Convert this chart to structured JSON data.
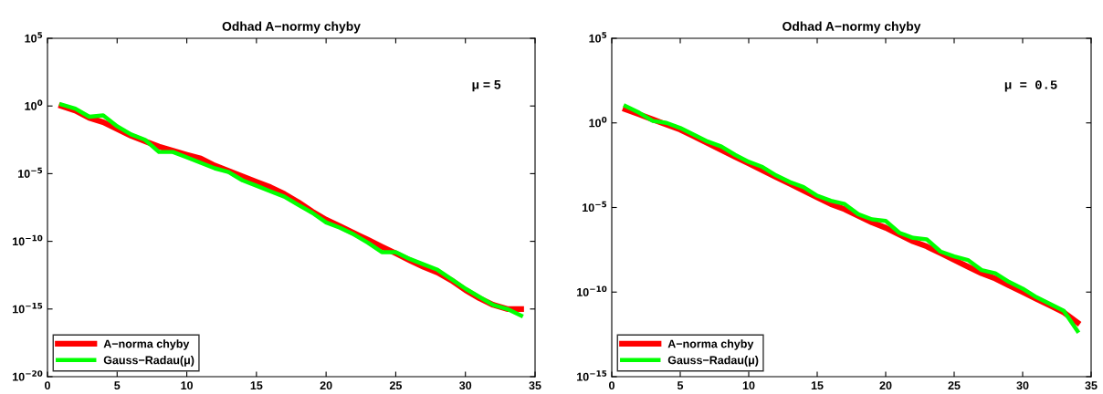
{
  "chart_data": [
    {
      "type": "line",
      "title": "Odhad A−normy chyby",
      "annotations": [
        "μ = 5"
      ],
      "legend": "bottom left",
      "grid": false,
      "log": "y",
      "xlim": [
        0,
        35
      ],
      "xticks": [
        0,
        5,
        10,
        15,
        20,
        25,
        30,
        35
      ],
      "ylim": [
        1e-20,
        100000.0
      ],
      "yticks": [
        {
          "value": 1e-20,
          "label": "10$^{−20}$"
        },
        {
          "value": 1e-15,
          "label": "10$^{−15}$"
        },
        {
          "value": 1e-10,
          "label": "10$^{−10}$"
        },
        {
          "value": 1e-05,
          "label": "10$^{−5}$"
        },
        {
          "value": 1,
          "label": "10$^{0}$"
        },
        {
          "value": 100000.0,
          "label": "10$^{5}$"
        }
      ],
      "x": [
        1,
        2,
        3,
        4,
        5,
        6,
        7,
        8,
        9,
        10,
        11,
        12,
        13,
        14,
        15,
        16,
        17,
        18,
        19,
        20,
        21,
        22,
        23,
        24,
        25,
        26,
        27,
        28,
        29,
        30,
        31,
        32,
        33,
        34
      ],
      "series": [
        {
          "name": "A−norma chyby",
          "color": "#ff0000",
          "values": [
            1,
            0.45,
            0.13,
            0.063,
            0.02,
            0.0063,
            0.0025,
            0.001,
            0.0005,
            0.00025,
            0.00013,
            4e-05,
            1.6e-05,
            6.3e-06,
            2.5e-06,
            1e-06,
            3.2e-07,
            7.9e-08,
            1.6e-08,
            4e-09,
            1.3e-09,
            4e-10,
            1.3e-10,
            4e-11,
            1.3e-11,
            4e-12,
            1.3e-12,
            5e-13,
            1.3e-13,
            2.5e-14,
            6.3e-15,
            2e-15,
            1e-15,
            1e-15
          ]
        },
        {
          "name": "Gauss−Radau(μ)",
          "color": "#00ff00",
          "values": [
            1.3,
            0.63,
            0.16,
            0.2,
            0.032,
            0.0079,
            0.0032,
            0.0004,
            0.0004,
            0.00016,
            6.3e-05,
            2.5e-05,
            1.3e-05,
            3.2e-06,
            1.3e-06,
            5e-07,
            2e-07,
            5e-08,
            1.3e-08,
            2.5e-09,
            1e-09,
            3.2e-10,
            7.9e-11,
            1.6e-11,
            1.6e-11,
            5e-12,
            2e-12,
            7.9e-13,
            1.6e-13,
            3.2e-14,
            7.9e-15,
            2e-15,
            1e-15,
            3.2e-16
          ]
        }
      ]
    },
    {
      "type": "line",
      "title": "Odhad A−normy chyby",
      "annotations": [
        "μ = 0.5"
      ],
      "legend": "bottom left",
      "grid": false,
      "log": "y",
      "xlim": [
        0,
        35
      ],
      "xticks": [
        0,
        5,
        10,
        15,
        20,
        25,
        30,
        35
      ],
      "ylim": [
        1e-15,
        100000.0
      ],
      "yticks": [
        {
          "value": 1e-15,
          "label": "10$^{−15}$"
        },
        {
          "value": 1e-10,
          "label": "10$^{−10}$"
        },
        {
          "value": 1e-05,
          "label": "10$^{−5}$"
        },
        {
          "value": 1,
          "label": "10$^{0}$"
        },
        {
          "value": 100000.0,
          "label": "10$^{5}$"
        }
      ],
      "x": [
        1,
        2,
        3,
        4,
        5,
        6,
        7,
        8,
        9,
        10,
        11,
        12,
        13,
        14,
        15,
        16,
        17,
        18,
        19,
        20,
        21,
        22,
        23,
        24,
        25,
        26,
        27,
        28,
        29,
        30,
        31,
        32,
        33,
        34
      ],
      "series": [
        {
          "name": "A−norma chyby",
          "color": "#ff0000",
          "values": [
            6.3,
            3.2,
            1.6,
            0.79,
            0.4,
            0.16,
            0.063,
            0.025,
            0.01,
            0.004,
            0.0016,
            0.00063,
            0.00025,
            0.0001,
            4e-05,
            1.6e-05,
            7.9e-06,
            3.2e-06,
            1.3e-06,
            6.3e-07,
            2.5e-07,
            1e-07,
            5e-08,
            2e-08,
            7.9e-09,
            3.2e-09,
            1.3e-09,
            6.3e-10,
            2.5e-10,
            1e-10,
            4e-11,
            1.6e-11,
            6.3e-12,
            1.6e-12
          ]
        },
        {
          "name": "Gauss−Radau(μ)",
          "color": "#00ff00",
          "values": [
            10,
            4,
            1.3,
            1,
            0.5,
            0.2,
            0.079,
            0.04,
            0.013,
            0.005,
            0.0025,
            0.00079,
            0.00032,
            0.00016,
            5e-05,
            2.5e-05,
            1.6e-05,
            4e-06,
            2e-06,
            1.6e-06,
            3.2e-07,
            1.6e-07,
            1.3e-07,
            2.5e-08,
            1.3e-08,
            7.9e-09,
            2e-09,
            1.3e-09,
            4e-10,
            1.6e-10,
            5e-11,
            2e-11,
            7.9e-12,
            5e-13
          ]
        }
      ]
    }
  ]
}
